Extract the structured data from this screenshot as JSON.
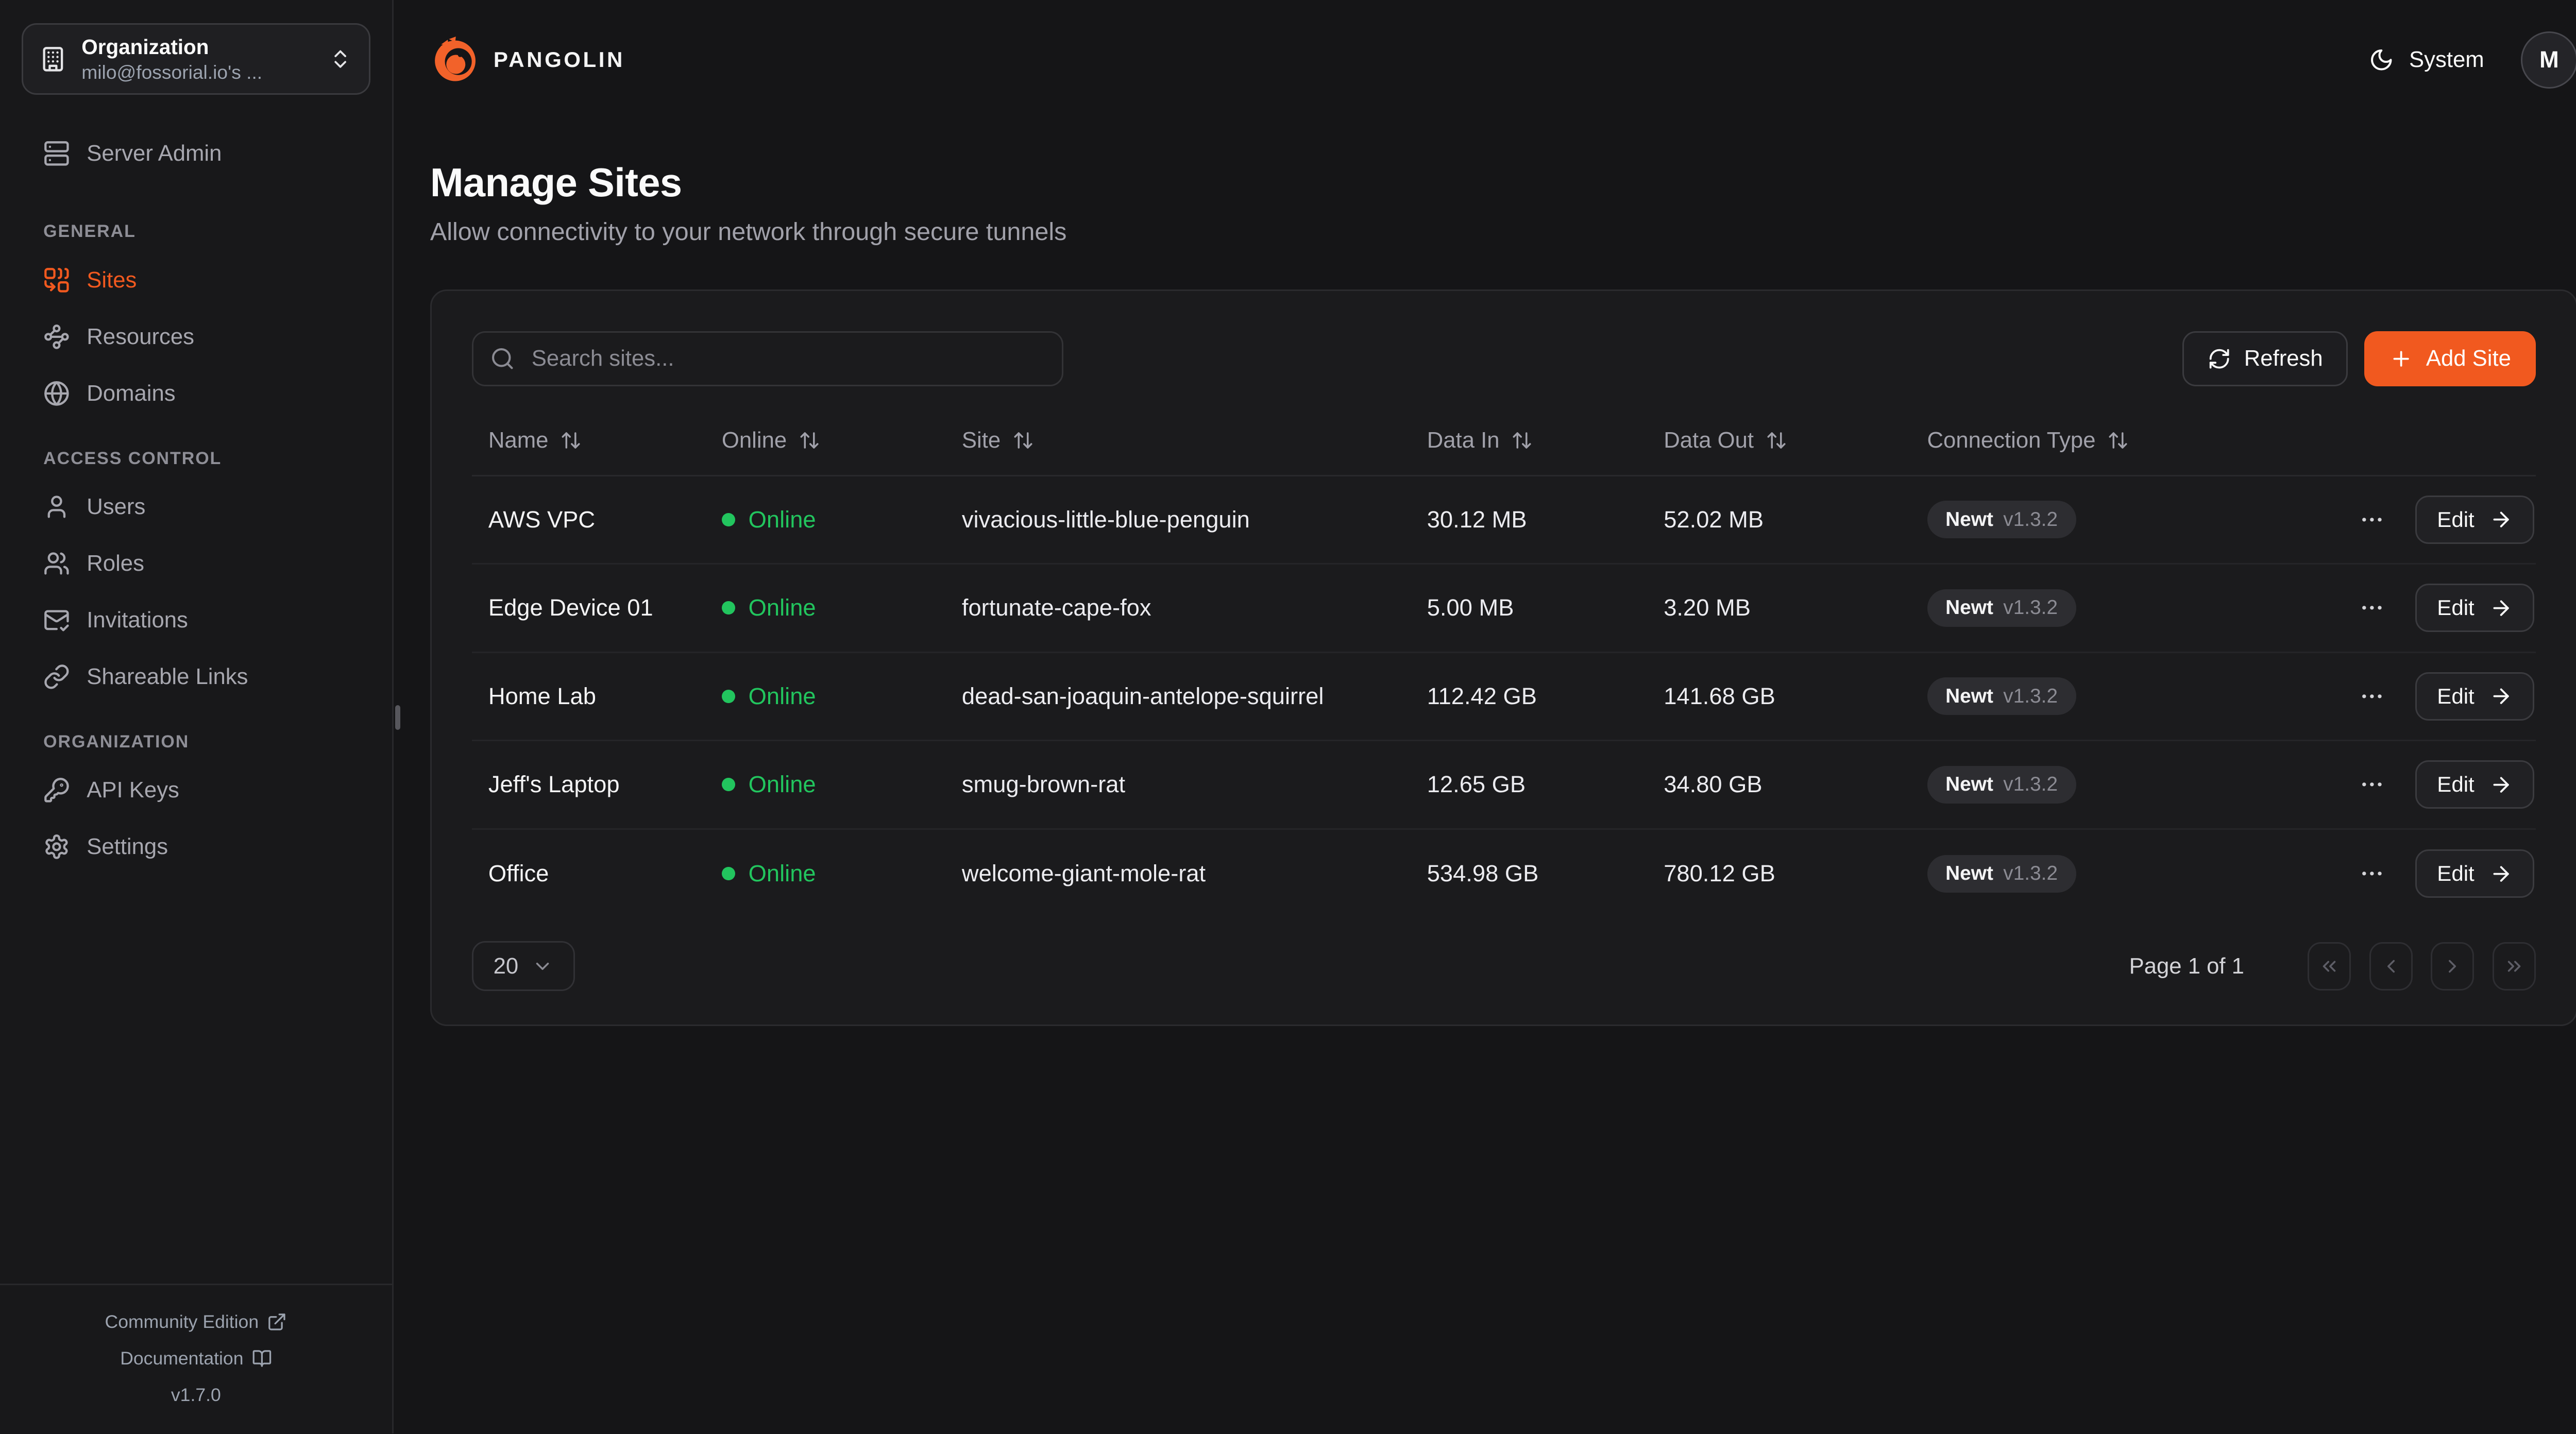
{
  "colors": {
    "accent": "#F1591F",
    "online": "#22C55E",
    "logo": "#F2622A"
  },
  "org_switcher": {
    "label": "Organization",
    "value": "milo@fossorial.io's ..."
  },
  "brand": {
    "name": "PANGOLIN"
  },
  "topbar": {
    "theme_label": "System",
    "avatar_initial": "M"
  },
  "sidebar": {
    "server_admin": {
      "label": "Server Admin",
      "icon": "server"
    },
    "sections": [
      {
        "title": "GENERAL",
        "items": [
          {
            "label": "Sites",
            "icon": "combine",
            "active": true
          },
          {
            "label": "Resources",
            "icon": "waypoints",
            "active": false
          },
          {
            "label": "Domains",
            "icon": "globe",
            "active": false
          }
        ]
      },
      {
        "title": "ACCESS CONTROL",
        "items": [
          {
            "label": "Users",
            "icon": "user",
            "active": false
          },
          {
            "label": "Roles",
            "icon": "users",
            "active": false
          },
          {
            "label": "Invitations",
            "icon": "mail-check",
            "active": false
          },
          {
            "label": "Shareable Links",
            "icon": "link",
            "active": false
          }
        ]
      },
      {
        "title": "ORGANIZATION",
        "items": [
          {
            "label": "API Keys",
            "icon": "key",
            "active": false
          },
          {
            "label": "Settings",
            "icon": "settings",
            "active": false
          }
        ]
      }
    ],
    "footer": {
      "community": "Community Edition",
      "docs": "Documentation",
      "version": "v1.7.0"
    }
  },
  "page": {
    "title": "Manage Sites",
    "subtitle": "Allow connectivity to your network through secure tunnels"
  },
  "toolbar": {
    "search_placeholder": "Search sites...",
    "refresh_label": "Refresh",
    "add_site_label": "Add Site"
  },
  "table": {
    "columns": [
      "Name",
      "Online",
      "Site",
      "Data In",
      "Data Out",
      "Connection Type"
    ],
    "row_action_label": "Edit",
    "rows": [
      {
        "name": "AWS VPC",
        "status": "Online",
        "site": "vivacious-little-blue-penguin",
        "data_in": "30.12 MB",
        "data_out": "52.02 MB",
        "connection_type": "Newt",
        "connection_version": "v1.3.2"
      },
      {
        "name": "Edge Device 01",
        "status": "Online",
        "site": "fortunate-cape-fox",
        "data_in": "5.00 MB",
        "data_out": "3.20 MB",
        "connection_type": "Newt",
        "connection_version": "v1.3.2"
      },
      {
        "name": "Home Lab",
        "status": "Online",
        "site": "dead-san-joaquin-antelope-squirrel",
        "data_in": "112.42 GB",
        "data_out": "141.68 GB",
        "connection_type": "Newt",
        "connection_version": "v1.3.2"
      },
      {
        "name": "Jeff's Laptop",
        "status": "Online",
        "site": "smug-brown-rat",
        "data_in": "12.65 GB",
        "data_out": "34.80 GB",
        "connection_type": "Newt",
        "connection_version": "v1.3.2"
      },
      {
        "name": "Office",
        "status": "Online",
        "site": "welcome-giant-mole-rat",
        "data_in": "534.98 GB",
        "data_out": "780.12 GB",
        "connection_type": "Newt",
        "connection_version": "v1.3.2"
      }
    ]
  },
  "pagination": {
    "page_size": "20",
    "status": "Page 1 of 1"
  }
}
